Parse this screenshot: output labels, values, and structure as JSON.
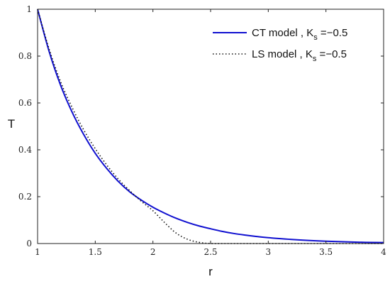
{
  "chart_data": {
    "type": "line",
    "xlabel": "r",
    "ylabel": "T",
    "xlim": [
      1,
      4
    ],
    "ylim": [
      0,
      1
    ],
    "x_ticks": [
      "1",
      "1.5",
      "2",
      "2.5",
      "3",
      "3.5",
      "4"
    ],
    "y_ticks": [
      "0",
      "0.2",
      "0.4",
      "0.6",
      "0.8",
      "1"
    ],
    "grid": false,
    "legend_position": "top-right",
    "series": [
      {
        "name": "CT model , K",
        "name_subscript": "s",
        "name_suffix": " =−0.5",
        "color": "#1010d0",
        "style": "solid",
        "x": [
          1.0,
          1.1,
          1.2,
          1.3,
          1.4,
          1.5,
          1.6,
          1.7,
          1.8,
          1.9,
          2.0,
          2.1,
          2.2,
          2.3,
          2.4,
          2.5,
          2.6,
          2.7,
          2.8,
          2.9,
          3.0,
          3.25,
          3.5,
          3.75,
          4.0
        ],
        "y": [
          1.0,
          0.82,
          0.675,
          0.56,
          0.465,
          0.385,
          0.32,
          0.265,
          0.22,
          0.185,
          0.155,
          0.13,
          0.108,
          0.09,
          0.075,
          0.063,
          0.052,
          0.043,
          0.036,
          0.03,
          0.025,
          0.016,
          0.01,
          0.006,
          0.004
        ]
      },
      {
        "name": "LS model , K",
        "name_subscript": "s",
        "name_suffix": " =−0.5",
        "color": "#111111",
        "style": "dotted",
        "x": [
          1.0,
          1.1,
          1.2,
          1.3,
          1.4,
          1.5,
          1.6,
          1.7,
          1.8,
          1.9,
          2.0,
          2.1,
          2.2,
          2.3,
          2.4,
          2.5,
          2.6,
          2.7,
          3.0,
          3.5,
          4.0
        ],
        "y": [
          1.0,
          0.83,
          0.69,
          0.58,
          0.485,
          0.405,
          0.335,
          0.275,
          0.225,
          0.18,
          0.14,
          0.09,
          0.045,
          0.018,
          0.005,
          0.0,
          0.0,
          0.0,
          0.0,
          0.0,
          0.0
        ]
      }
    ]
  }
}
